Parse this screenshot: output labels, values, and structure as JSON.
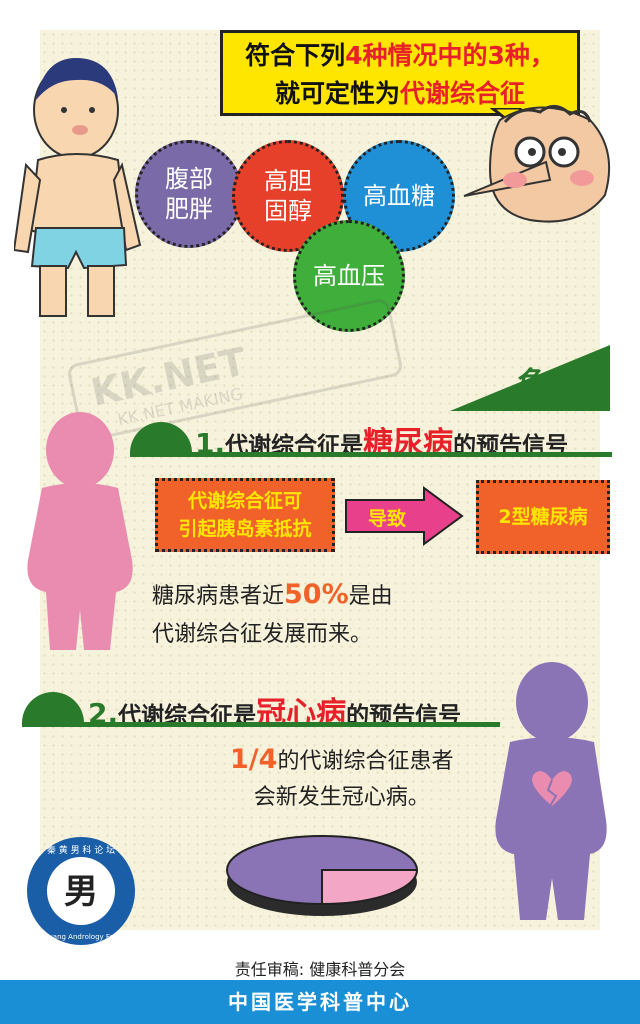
{
  "speech": {
    "line1_a": "符合下列",
    "line1_b": "4种情况中的3种，",
    "line2_a": "就可定性为",
    "line2_b": "代谢综合征"
  },
  "criteria": [
    {
      "label_line1": "腹部",
      "label_line2": "肥胖",
      "color": "#7b6aa8"
    },
    {
      "label_line1": "高胆",
      "label_line2": "固醇",
      "color": "#e6402a"
    },
    {
      "label_line1": "高血糖",
      "label_line2": "",
      "color": "#1f8fd6"
    },
    {
      "label_line1": "高血压",
      "label_line2": "",
      "color": "#3fae3a"
    }
  ],
  "watermark": {
    "main": "KK.NET",
    "sub": "KK.NET MAKING"
  },
  "harm": {
    "title": "危害:"
  },
  "section1": {
    "num": "1.",
    "pre": "代谢综合征是",
    "hot": "糖尿病",
    "post": "的预告信号",
    "cause_line1": "代谢综合征可",
    "cause_line2": "引起胰岛素抵抗",
    "arrow_label": "导致",
    "result": "2型糖尿病",
    "stat_pre": "糖尿病患者近",
    "stat_pct": "50%",
    "stat_post": "是由",
    "stat_line2": "代谢综合征发展而来。"
  },
  "section2": {
    "num": "2.",
    "pre": "代谢综合征是",
    "hot": "冠心病",
    "post": "的预告信号",
    "stat_frac": "1/4",
    "stat_post": "的代谢综合征患者",
    "stat_line2": "会新发生冠心病。",
    "pie_fraction": 0.25
  },
  "logo": {
    "arc_top": "秦 黄 男 科 论 坛",
    "arc_bottom": "Qi-huang Andrology Forum"
  },
  "credit": "责任审稿: 健康科普分会",
  "footer": "中国医学科普中心",
  "colors": {
    "accent_green": "#2a7a2c",
    "alert_red": "#e8202a",
    "box_orange": "#f0622a",
    "footer_blue": "#1a8fd6"
  }
}
